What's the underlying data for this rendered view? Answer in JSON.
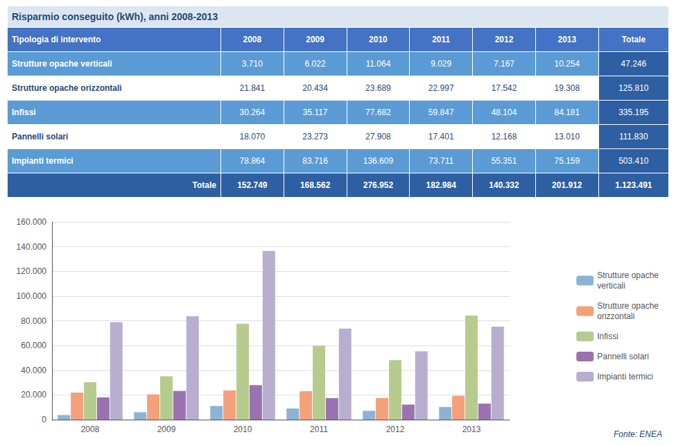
{
  "chart_data": [
    {
      "type": "table",
      "title": "Risparmio conseguito (kWh), anni 2008-2013",
      "header": [
        "Tipologia di intervento",
        "2008",
        "2009",
        "2010",
        "2011",
        "2012",
        "2013",
        "Totale"
      ],
      "rows": [
        [
          "Strutture opache verticali",
          "3.710",
          "6.022",
          "11.064",
          "9.029",
          "7.167",
          "10.254",
          "47.246"
        ],
        [
          "Strutture opache orizzontali",
          "21.841",
          "20.434",
          "23.689",
          "22.997",
          "17.542",
          "19.308",
          "125.810"
        ],
        [
          "Infissi",
          "30.264",
          "35.117",
          "77.682",
          "59.847",
          "48.104",
          "84.181",
          "335.195"
        ],
        [
          "Pannelli solari",
          "18.070",
          "23.273",
          "27.908",
          "17.401",
          "12.168",
          "13.010",
          "111.830"
        ],
        [
          "Impianti termici",
          "78.864",
          "83.716",
          "136.609",
          "73.711",
          "55.351",
          "75.159",
          "503.410"
        ]
      ],
      "totals": [
        "Totale",
        "152.749",
        "168.562",
        "276.952",
        "182.984",
        "140.332",
        "201.912",
        "1.123.491"
      ]
    },
    {
      "type": "bar",
      "categories": [
        "2008",
        "2009",
        "2010",
        "2011",
        "2012",
        "2013"
      ],
      "series": [
        {
          "name": "Strutture opache\nverticali",
          "color": "#8db3d4",
          "values": [
            3710,
            6022,
            11064,
            9029,
            7167,
            10254
          ]
        },
        {
          "name": "Strutture opache\norizzontali",
          "color": "#f4a07a",
          "values": [
            21841,
            20434,
            23689,
            22997,
            17542,
            19308
          ]
        },
        {
          "name": "Infissi",
          "color": "#b5cc8e",
          "values": [
            30264,
            35117,
            77682,
            59847,
            48104,
            84181
          ]
        },
        {
          "name": "Pannelli solari",
          "color": "#9b72b0",
          "values": [
            18070,
            23273,
            27908,
            17401,
            12168,
            13010
          ]
        },
        {
          "name": "Impianti termici",
          "color": "#b8aed0",
          "values": [
            78864,
            83716,
            136609,
            73711,
            55351,
            75159
          ]
        }
      ],
      "ylim": [
        0,
        160000
      ],
      "yticks": [
        0,
        {
          "value": 20000,
          "label": "20.000"
        },
        {
          "value": 40000,
          "label": "40.000"
        },
        {
          "value": 60000,
          "label": "60.000"
        },
        {
          "value": 80000,
          "label": "80.000"
        },
        {
          "value": 100000,
          "label": "100.000"
        },
        {
          "value": 120000,
          "label": "120.000"
        },
        {
          "value": 140000,
          "label": "140.000"
        },
        {
          "value": 160000,
          "label": "160.000"
        }
      ],
      "grid": true,
      "legend": "right",
      "annotations": [
        "Fonte: ENEA"
      ]
    }
  ]
}
